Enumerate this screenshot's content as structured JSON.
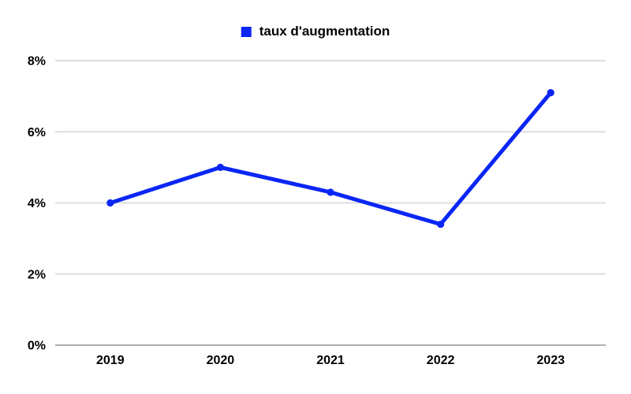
{
  "legend": {
    "label": "taux d'augmentation"
  },
  "colors": {
    "series": "#0a26f5",
    "gridline": "#dddddd",
    "axis": "#b0b0b0",
    "text": "#000000",
    "background": "#ffffff"
  },
  "chart_data": {
    "type": "line",
    "title": "",
    "xlabel": "",
    "ylabel": "",
    "categories": [
      "2019",
      "2020",
      "2021",
      "2022",
      "2023"
    ],
    "series": [
      {
        "name": "taux d'augmentation",
        "values": [
          4.0,
          5.0,
          4.3,
          3.4,
          7.1
        ]
      }
    ],
    "ylim": [
      0,
      8
    ],
    "yticks": [
      0,
      2,
      4,
      6,
      8
    ],
    "ytick_format": "{v}%",
    "grid": true,
    "legend_position": "top",
    "marker": "circle"
  }
}
